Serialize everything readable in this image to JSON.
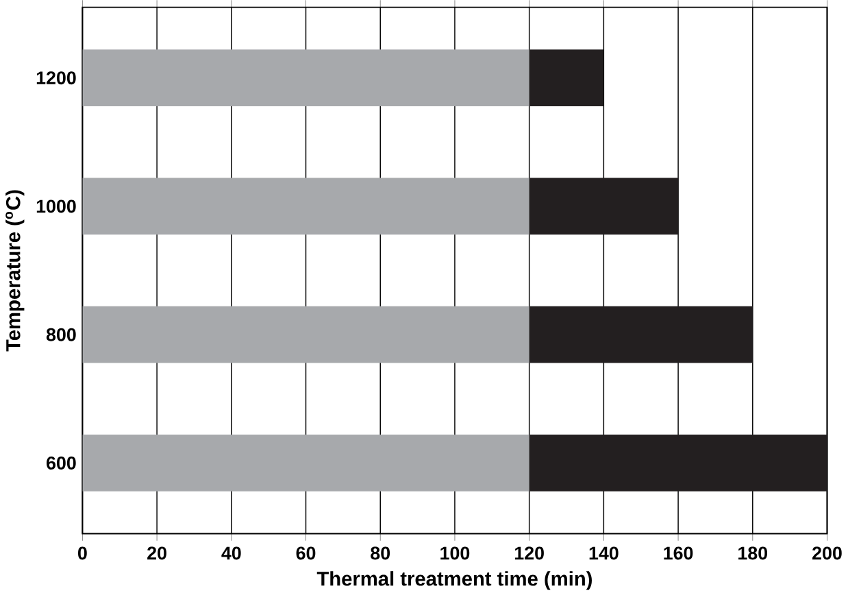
{
  "chart_data": {
    "type": "bar",
    "orientation": "horizontal",
    "stacked": true,
    "xlabel": "Thermal treatment time (min)",
    "ylabel": "Temperature ($^{o}$C)",
    "categories": [
      "1200",
      "1000",
      "800",
      "600"
    ],
    "series": [
      {
        "color": "#a7a9ac",
        "values": [
          120,
          120,
          120,
          120
        ]
      },
      {
        "color": "#231f20",
        "values": [
          20,
          40,
          60,
          80
        ]
      }
    ],
    "xlim": [
      0,
      200
    ],
    "xticks": [
      0,
      20,
      40,
      60,
      80,
      100,
      120,
      140,
      160,
      180,
      200
    ],
    "grid": "x"
  }
}
